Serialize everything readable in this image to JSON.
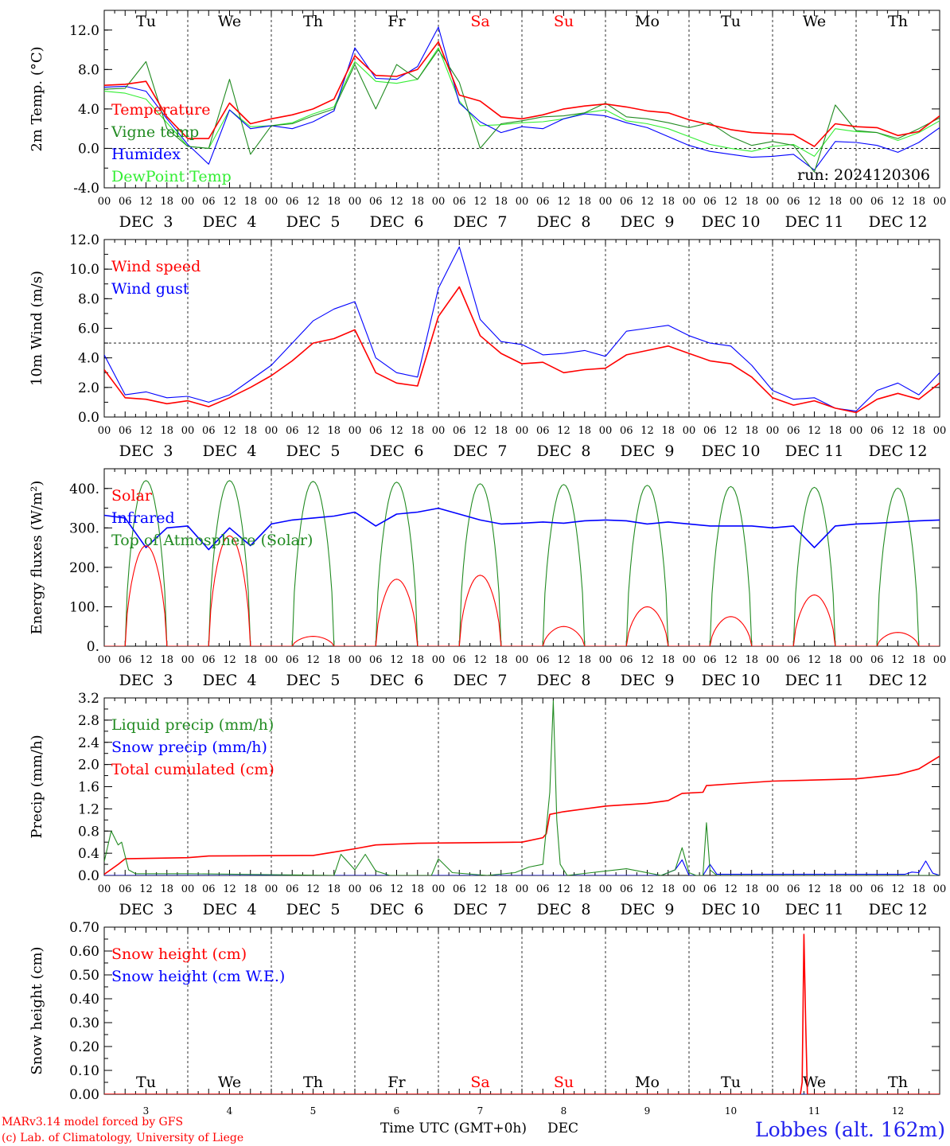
{
  "chart_data": [
    {
      "type": "line",
      "ylabel": "2m Temp. (°C)",
      "ylim": [
        -4,
        14
      ],
      "yticks": [
        "-4.0",
        "0.0",
        "4.0",
        "8.0",
        "12.0"
      ],
      "ytick_values": [
        -4,
        0,
        4,
        8,
        12
      ],
      "zero_line": 0,
      "run_label": "run: 2024120306",
      "x_hours": [
        0,
        6,
        12,
        18,
        24,
        30,
        36,
        42,
        48,
        54,
        60,
        66,
        72,
        78,
        84,
        90,
        96,
        102,
        108,
        114,
        120,
        126,
        132,
        138,
        144,
        150,
        156,
        162,
        168,
        174,
        180,
        186,
        192,
        198,
        204,
        210,
        216,
        222,
        228,
        234,
        240
      ],
      "series": [
        {
          "name": "Temperature",
          "color": "#ff0000",
          "values": [
            6.4,
            6.5,
            6.8,
            3.2,
            1.0,
            1.0,
            4.6,
            2.5,
            3.0,
            3.4,
            4.0,
            5.0,
            9.4,
            7.4,
            7.3,
            8.0,
            10.8,
            5.4,
            4.8,
            3.2,
            3.0,
            3.4,
            4.0,
            4.3,
            4.5,
            4.2,
            3.8,
            3.6,
            2.9,
            2.4,
            1.9,
            1.6,
            1.5,
            1.4,
            0.2,
            2.5,
            2.2,
            2.1,
            1.3,
            1.7,
            3.3
          ]
        },
        {
          "name": "Vigne temp",
          "color": "#228b22",
          "values": [
            6.0,
            6.1,
            8.8,
            2.0,
            0.2,
            0.0,
            7.0,
            -0.6,
            2.3,
            2.5,
            3.3,
            4.0,
            8.5,
            4.0,
            8.5,
            7.0,
            10.0,
            6.7,
            0.0,
            2.5,
            2.8,
            3.2,
            3.3,
            3.6,
            4.6,
            3.2,
            3.0,
            2.6,
            2.1,
            2.6,
            1.2,
            0.3,
            0.7,
            0.3,
            -2.4,
            4.4,
            1.8,
            1.6,
            1.0,
            2.0,
            3.1
          ]
        },
        {
          "name": "Humidex",
          "color": "#0000ff",
          "values": [
            6.2,
            6.3,
            5.8,
            3.0,
            0.4,
            -1.6,
            3.9,
            2.0,
            2.3,
            2.0,
            2.7,
            3.8,
            10.2,
            7.1,
            7.0,
            8.3,
            12.3,
            4.6,
            2.7,
            1.6,
            2.2,
            2.0,
            3.0,
            3.5,
            3.3,
            2.6,
            2.1,
            1.2,
            0.3,
            -0.3,
            -0.6,
            -0.9,
            -0.8,
            -0.6,
            -2.2,
            0.7,
            0.6,
            0.3,
            -0.4,
            0.6,
            2.1
          ]
        },
        {
          "name": "DewPoint Temp",
          "color": "#33ee33",
          "values": [
            5.8,
            5.6,
            5.0,
            2.6,
            0.2,
            0.0,
            3.9,
            2.2,
            2.3,
            2.6,
            3.5,
            4.2,
            8.8,
            6.8,
            6.6,
            7.0,
            10.2,
            4.8,
            2.3,
            2.4,
            2.6,
            2.7,
            3.0,
            3.6,
            3.9,
            2.8,
            2.5,
            2.0,
            1.2,
            0.4,
            0.0,
            -0.3,
            0.2,
            0.4,
            -0.8,
            2.0,
            1.7,
            1.6,
            0.8,
            1.6,
            2.8
          ]
        }
      ]
    },
    {
      "type": "line",
      "ylabel": "10m Wind (m/s)",
      "ylim": [
        0,
        12
      ],
      "yticks": [
        "0.0",
        "2.0",
        "4.0",
        "6.0",
        "8.0",
        "10.0",
        "12.0"
      ],
      "ytick_values": [
        0,
        2,
        4,
        6,
        8,
        10,
        12
      ],
      "ref_line": 5,
      "x_hours": [
        0,
        6,
        12,
        18,
        24,
        30,
        36,
        42,
        48,
        54,
        60,
        66,
        72,
        78,
        84,
        90,
        96,
        102,
        108,
        114,
        120,
        126,
        132,
        138,
        144,
        150,
        156,
        162,
        168,
        174,
        180,
        186,
        192,
        198,
        204,
        210,
        216,
        222,
        228,
        234,
        240
      ],
      "series": [
        {
          "name": "Wind speed",
          "color": "#ff0000",
          "values": [
            3.2,
            1.3,
            1.2,
            0.9,
            1.1,
            0.7,
            1.3,
            2.0,
            2.8,
            3.8,
            5.0,
            5.3,
            5.9,
            3.0,
            2.3,
            2.1,
            6.8,
            8.8,
            5.5,
            4.3,
            3.6,
            3.7,
            3.0,
            3.2,
            3.3,
            4.2,
            4.5,
            4.8,
            4.3,
            3.8,
            3.6,
            2.7,
            1.3,
            0.8,
            1.1,
            0.6,
            0.3,
            1.2,
            1.6,
            1.2,
            2.3
          ]
        },
        {
          "name": "Wind gust",
          "color": "#0000ff",
          "values": [
            4.2,
            1.5,
            1.7,
            1.3,
            1.4,
            1.0,
            1.5,
            2.5,
            3.5,
            5.0,
            6.5,
            7.3,
            7.8,
            4.0,
            3.0,
            2.7,
            8.7,
            11.5,
            6.6,
            5.1,
            4.9,
            4.2,
            4.3,
            4.5,
            4.1,
            5.8,
            6.0,
            6.2,
            5.5,
            5.0,
            4.8,
            3.5,
            1.8,
            1.2,
            1.3,
            0.6,
            0.4,
            1.8,
            2.3,
            1.5,
            3.0
          ]
        }
      ]
    },
    {
      "type": "line",
      "ylabel": "Energy fluxes (W/m²)",
      "ylim": [
        0,
        450
      ],
      "yticks": [
        "0.",
        "100.",
        "200.",
        "300.",
        "400."
      ],
      "ytick_values": [
        0,
        100,
        200,
        300,
        400
      ],
      "daylight": {
        "start_hour": 6,
        "end_hour": 18
      },
      "series": [
        {
          "name": "Solar",
          "color": "#ff0000",
          "daily_peaks": [
            255,
            280,
            25,
            170,
            180,
            50,
            100,
            75,
            130,
            35
          ]
        },
        {
          "name": "Infrared",
          "color": "#0000ff",
          "x_hours": [
            0,
            6,
            12,
            18,
            24,
            30,
            36,
            42,
            48,
            54,
            60,
            66,
            72,
            78,
            84,
            90,
            96,
            102,
            108,
            114,
            120,
            126,
            132,
            138,
            144,
            150,
            156,
            162,
            168,
            174,
            180,
            186,
            192,
            198,
            204,
            210,
            216,
            222,
            228,
            234,
            240
          ],
          "values": [
            332,
            325,
            250,
            300,
            305,
            245,
            300,
            255,
            310,
            320,
            325,
            330,
            340,
            305,
            335,
            340,
            350,
            335,
            320,
            310,
            312,
            315,
            312,
            318,
            320,
            318,
            310,
            315,
            310,
            305,
            305,
            305,
            300,
            305,
            250,
            305,
            310,
            312,
            315,
            318,
            320
          ]
        },
        {
          "name": "Top of Atmosphere (Solar)",
          "color": "#228b22",
          "daily_peaks": [
            420,
            420,
            418,
            416,
            412,
            410,
            408,
            405,
            403,
            401
          ]
        }
      ]
    },
    {
      "type": "line",
      "ylabel": "Precip (mm/h)",
      "ylim": [
        0,
        3.2
      ],
      "yticks": [
        "0.0",
        "0.4",
        "0.8",
        "1.2",
        "1.6",
        "2.0",
        "2.4",
        "2.8",
        "3.2"
      ],
      "ytick_values": [
        0,
        0.4,
        0.8,
        1.2,
        1.6,
        2.0,
        2.4,
        2.8,
        3.2
      ],
      "series": [
        {
          "name": "Liquid precip (mm/h)",
          "color": "#228b22",
          "points": [
            [
              0,
              0.25
            ],
            [
              2,
              0.8
            ],
            [
              4,
              0.55
            ],
            [
              5,
              0.6
            ],
            [
              7,
              0.1
            ],
            [
              9,
              0.03
            ],
            [
              24,
              0.03
            ],
            [
              66,
              0.0
            ],
            [
              68,
              0.38
            ],
            [
              72,
              0.1
            ],
            [
              75,
              0.38
            ],
            [
              78,
              0.08
            ],
            [
              82,
              0.0
            ],
            [
              94,
              0.0
            ],
            [
              96,
              0.3
            ],
            [
              100,
              0.05
            ],
            [
              110,
              0.0
            ],
            [
              118,
              0.05
            ],
            [
              122,
              0.15
            ],
            [
              126,
              0.2
            ],
            [
              128,
              1.5
            ],
            [
              129,
              3.15
            ],
            [
              130,
              1.0
            ],
            [
              131,
              0.2
            ],
            [
              133,
              0.0
            ],
            [
              140,
              0.05
            ],
            [
              150,
              0.12
            ],
            [
              160,
              0.0
            ],
            [
              164,
              0.1
            ],
            [
              166,
              0.5
            ],
            [
              168,
              0.05
            ],
            [
              170,
              0.0
            ],
            [
              172,
              0.0
            ],
            [
              173,
              0.95
            ],
            [
              174,
              0.1
            ],
            [
              176,
              0.0
            ],
            [
              240,
              0.0
            ]
          ]
        },
        {
          "name": "Snow precip (mm/h)",
          "color": "#0000ff",
          "points": [
            [
              0,
              0.0
            ],
            [
              160,
              0.0
            ],
            [
              164,
              0.1
            ],
            [
              166,
              0.28
            ],
            [
              168,
              0.0
            ],
            [
              172,
              0.0
            ],
            [
              174,
              0.2
            ],
            [
              176,
              0.02
            ],
            [
              230,
              0.02
            ],
            [
              232,
              0.06
            ],
            [
              234,
              0.05
            ],
            [
              236,
              0.26
            ],
            [
              238,
              0.04
            ],
            [
              240,
              0.0
            ]
          ]
        },
        {
          "name": "Total cumulated (cm)",
          "color": "#ff0000",
          "points": [
            [
              0,
              0.02
            ],
            [
              4,
              0.2
            ],
            [
              6,
              0.3
            ],
            [
              24,
              0.32
            ],
            [
              30,
              0.35
            ],
            [
              60,
              0.36
            ],
            [
              66,
              0.42
            ],
            [
              72,
              0.48
            ],
            [
              78,
              0.55
            ],
            [
              90,
              0.58
            ],
            [
              120,
              0.6
            ],
            [
              126,
              0.68
            ],
            [
              127,
              0.75
            ],
            [
              128,
              1.1
            ],
            [
              132,
              1.15
            ],
            [
              144,
              1.25
            ],
            [
              156,
              1.3
            ],
            [
              162,
              1.35
            ],
            [
              166,
              1.48
            ],
            [
              172,
              1.5
            ],
            [
              173,
              1.62
            ],
            [
              180,
              1.65
            ],
            [
              192,
              1.7
            ],
            [
              216,
              1.74
            ],
            [
              228,
              1.82
            ],
            [
              234,
              1.92
            ],
            [
              240,
              2.15
            ]
          ]
        }
      ]
    },
    {
      "type": "line",
      "ylabel": "Snow height (cm)",
      "ylim": [
        0,
        0.7
      ],
      "yticks": [
        "0.00",
        "0.10",
        "0.20",
        "0.30",
        "0.40",
        "0.50",
        "0.60",
        "0.70"
      ],
      "ytick_values": [
        0,
        0.1,
        0.2,
        0.3,
        0.4,
        0.5,
        0.6,
        0.7
      ],
      "series": [
        {
          "name": "Snow height (cm)",
          "color": "#ff0000",
          "points": [
            [
              0,
              0.0
            ],
            [
              200,
              0.0
            ],
            [
              200.5,
              0.05
            ],
            [
              201,
              0.67
            ],
            [
              201.5,
              0.3
            ],
            [
              202,
              0.0
            ],
            [
              240,
              0.0
            ]
          ]
        },
        {
          "name": "Snow height (cm W.E.)",
          "color": "#0000ff",
          "points": [
            [
              0,
              0.0
            ],
            [
              240,
              0.0
            ]
          ]
        }
      ]
    }
  ],
  "time_axis": {
    "hour_ticks": [
      "00",
      "06",
      "12",
      "18"
    ],
    "final_tick": "00",
    "date_labels": [
      "DEC  3",
      "DEC  4",
      "DEC  5",
      "DEC  6",
      "DEC  7",
      "DEC  8",
      "DEC  9",
      "DEC 10",
      "DEC 11",
      "DEC 12"
    ],
    "days": [
      "Tu",
      "We",
      "Th",
      "Fr",
      "Sa",
      "Su",
      "Mo",
      "Tu",
      "We",
      "Th"
    ],
    "weekend_days": [
      4,
      5
    ],
    "day_numbers": [
      "3",
      "4",
      "5",
      "6",
      "7",
      "8",
      "9",
      "10",
      "11",
      "12"
    ],
    "xlabel": "Time UTC (GMT+0h)",
    "month": "DEC"
  },
  "footer": {
    "credit_line1": "MARv3.14 model forced by GFS",
    "credit_line2": "(c) Lab. of Climatology, University of Liege",
    "station": "Lobbes (alt. 162m)"
  },
  "colors": {
    "red": "#ff0000",
    "green": "#228b22",
    "blue": "#0000ff",
    "lightgreen": "#33ee33",
    "weekday": "#000000",
    "weekend": "#ff0000"
  }
}
